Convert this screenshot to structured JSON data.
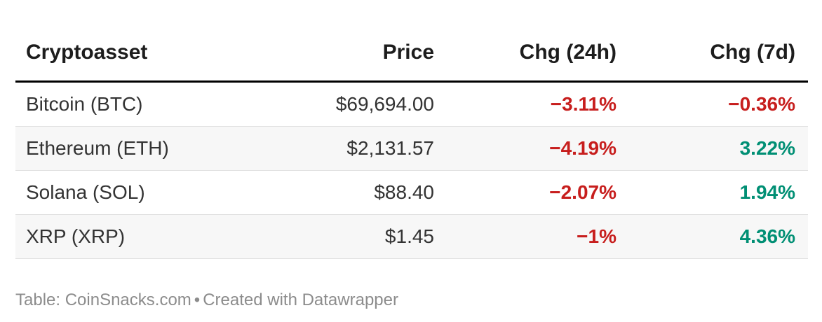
{
  "chart_data": {
    "type": "table",
    "columns": [
      "Cryptoasset",
      "Price",
      "Chg (24h)",
      "Chg (7d)"
    ],
    "rows": [
      {
        "cryptoasset": "Bitcoin (BTC)",
        "price": "$69,694.00",
        "chg_24h": "−3.11%",
        "chg_7d": "−0.36%"
      },
      {
        "cryptoasset": "Ethereum (ETH)",
        "price": "$2,131.57",
        "chg_24h": "−4.19%",
        "chg_7d": "3.22%"
      },
      {
        "cryptoasset": "Solana (SOL)",
        "price": "$88.40",
        "chg_24h": "−2.07%",
        "chg_7d": "1.94%"
      },
      {
        "cryptoasset": "XRP (XRP)",
        "price": "$1.45",
        "chg_24h": "−1%",
        "chg_7d": "4.36%"
      }
    ],
    "layout_hints": {
      "alternating_row_shading": true,
      "numeric_columns_right_aligned": true,
      "change_values_bold": true
    }
  },
  "footer": {
    "source": "Table: CoinSnacks.com",
    "separator": "•",
    "attribution": "Created with Datawrapper"
  },
  "colors": {
    "negative": "#c71e1d",
    "positive": "#008f74",
    "row_alt_bg": "#f7f7f7",
    "header_text": "#1d1d1d",
    "body_text": "#333333",
    "divider": "#e0e0e0",
    "header_rule": "#000000",
    "footer_text": "#8c8c8c"
  }
}
